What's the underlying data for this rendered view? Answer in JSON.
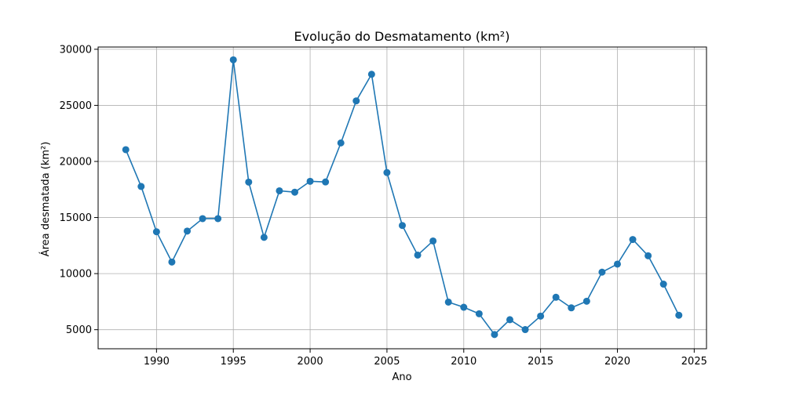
{
  "chart_data": {
    "type": "line",
    "title": "Evolução do Desmatamento (km²)",
    "xlabel": "Ano",
    "ylabel": "Área desmatada (km²)",
    "xlim": [
      1986.2,
      2025.8
    ],
    "ylim": [
      3300,
      30200
    ],
    "xticks": [
      1990,
      1995,
      2000,
      2005,
      2010,
      2015,
      2020,
      2025
    ],
    "yticks": [
      5000,
      10000,
      15000,
      20000,
      25000,
      30000
    ],
    "grid": true,
    "series": [
      {
        "color": "#1f77b4",
        "x": [
          1988,
          1989,
          1990,
          1991,
          1992,
          1993,
          1994,
          1995,
          1996,
          1997,
          1998,
          1999,
          2000,
          2001,
          2002,
          2003,
          2004,
          2005,
          2006,
          2007,
          2008,
          2009,
          2010,
          2011,
          2012,
          2013,
          2014,
          2015,
          2016,
          2017,
          2018,
          2019,
          2020,
          2021,
          2022,
          2023,
          2024
        ],
        "y": [
          21050,
          17770,
          13730,
          11030,
          13790,
          14900,
          14900,
          29060,
          18160,
          13230,
          17380,
          17260,
          18230,
          18170,
          21650,
          25400,
          27770,
          19010,
          14290,
          11650,
          12910,
          7460,
          7000,
          6420,
          4570,
          5890,
          5010,
          6210,
          7890,
          6950,
          7540,
          10130,
          10850,
          13040,
          11590,
          9060,
          6290
        ]
      }
    ]
  }
}
